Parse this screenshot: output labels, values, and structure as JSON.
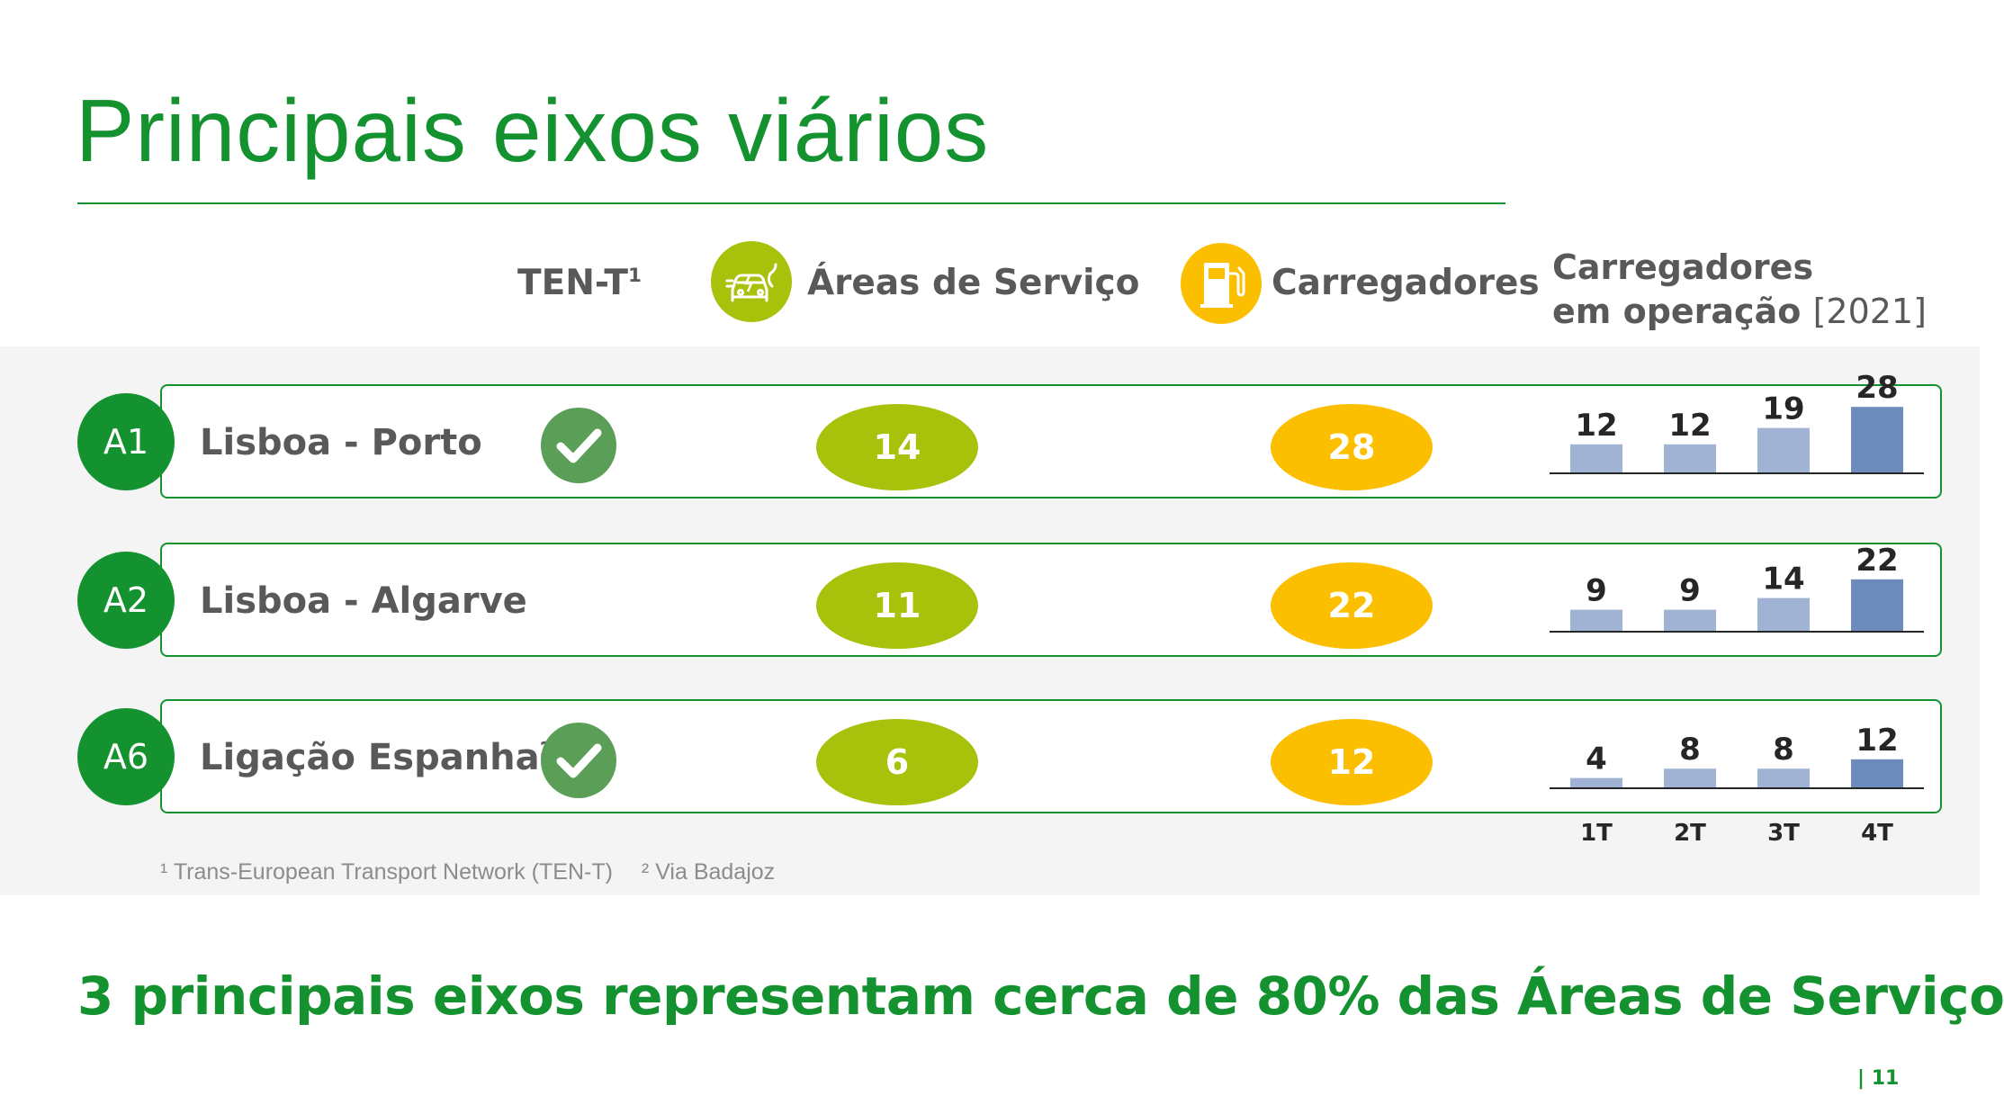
{
  "title": "Principais eixos viários",
  "headers": {
    "ten_t": "TEN-T",
    "ten_t_sup": "1",
    "areas_servico": "Áreas de Serviço",
    "carregadores": "Carregadores",
    "ops_line1": "Carregadores",
    "ops_line2": "em operação",
    "ops_year": "[2021]"
  },
  "icons": {
    "areas_servico": "ev-car-charging-icon",
    "carregadores": "fuel-pump-icon",
    "ten_t_check": "check-icon"
  },
  "colors": {
    "brand_green": "#13922f",
    "areas_green": "#a8c10b",
    "chargers_yellow": "#fbbf00",
    "check_green": "#5a9e58",
    "bar_light": "#a1b3d4",
    "bar_dark": "#6d8bbd"
  },
  "rows": [
    {
      "badge": "A1",
      "name": "Lisboa - Porto",
      "name_sup": "",
      "ten_t": true,
      "areas": "14",
      "carregadores": "28"
    },
    {
      "badge": "A2",
      "name": "Lisboa - Algarve",
      "name_sup": "",
      "ten_t": false,
      "areas": "11",
      "carregadores": "22"
    },
    {
      "badge": "A6",
      "name": "Ligação Espanha",
      "name_sup": "2",
      "ten_t": true,
      "areas": "6",
      "carregadores": "12"
    }
  ],
  "chart_data": [
    {
      "type": "bar",
      "categories": [
        "1T",
        "2T",
        "3T",
        "4T"
      ],
      "series": [
        {
          "values": [
            12,
            12,
            19,
            28
          ]
        }
      ]
    },
    {
      "type": "bar",
      "categories": [
        "1T",
        "2T",
        "3T",
        "4T"
      ],
      "series": [
        {
          "values": [
            9,
            9,
            14,
            22
          ]
        }
      ]
    },
    {
      "type": "bar",
      "categories": [
        "1T",
        "2T",
        "3T",
        "4T"
      ],
      "series": [
        {
          "values": [
            4,
            8,
            8,
            12
          ]
        }
      ]
    }
  ],
  "quarters": [
    "1T",
    "2T",
    "3T",
    "4T"
  ],
  "footnotes": [
    "¹ Trans-European Transport Network (TEN-T)",
    "² Via Badajoz"
  ],
  "headline": "3 principais eixos representam cerca de 80% das Áreas de Serviço",
  "page_number": "| 11"
}
